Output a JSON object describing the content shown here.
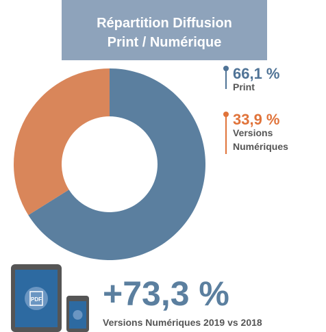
{
  "chart_data": {
    "type": "donut",
    "title": "Répartition Diffusion",
    "subtitle": "Print / Numérique",
    "categories": [
      "Print",
      "Versions Numériques"
    ],
    "values": [
      66.1,
      33.9
    ],
    "value_labels": [
      "66,1 %",
      "33,9 %"
    ],
    "colors": [
      "#5b7f9f",
      "#d9865a"
    ],
    "legend_colors": [
      "#4f7396",
      "#e0733a"
    ],
    "highlight": {
      "value": 73.3,
      "label": "+73,3 %",
      "caption": "Versions Numériques 2019 vs 2018"
    }
  }
}
